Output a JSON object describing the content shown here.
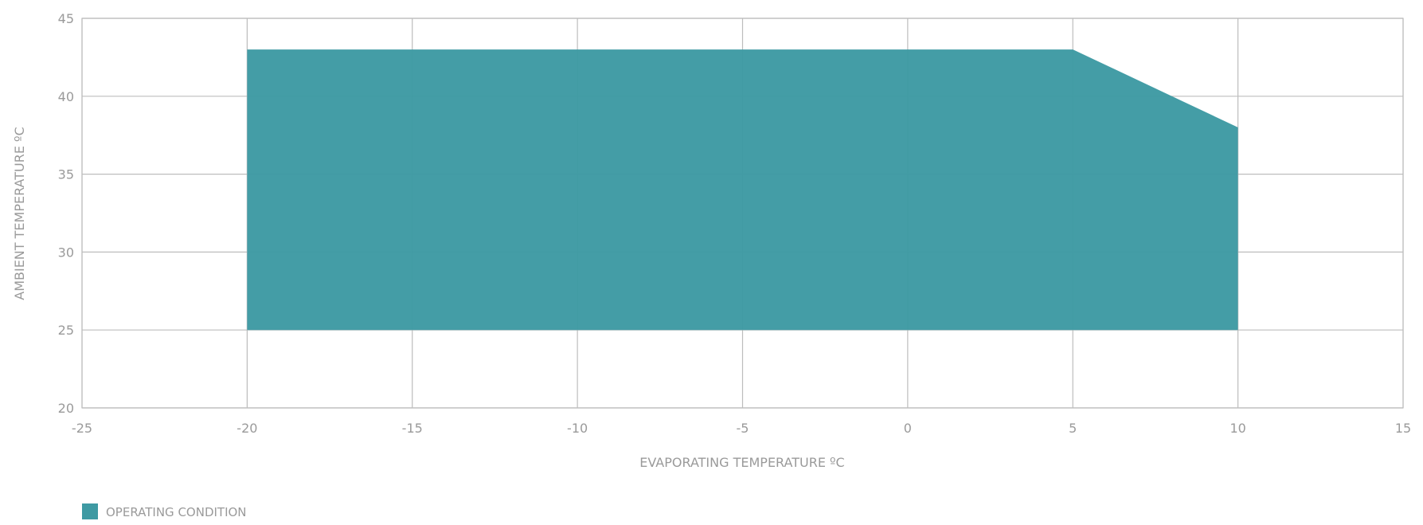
{
  "chart_data": {
    "type": "area",
    "xlabel": "EVAPORATING TEMPERATURE ºC",
    "ylabel": "AMBIENT TEMPERATURE ºC",
    "xlim": [
      -25,
      15
    ],
    "ylim": [
      20,
      45
    ],
    "x_ticks": [
      -25,
      -20,
      -15,
      -10,
      -5,
      0,
      5,
      10,
      15
    ],
    "y_ticks": [
      20,
      25,
      30,
      35,
      40,
      45
    ],
    "grid": true,
    "legend_position": "bottom-left",
    "series": [
      {
        "name": "OPERATING CONDITION",
        "color": "#3e9aa3",
        "points": [
          {
            "x": -20,
            "y": 25
          },
          {
            "x": -20,
            "y": 43
          },
          {
            "x": 5,
            "y": 43
          },
          {
            "x": 10,
            "y": 38
          },
          {
            "x": 10,
            "y": 25
          }
        ]
      }
    ]
  }
}
